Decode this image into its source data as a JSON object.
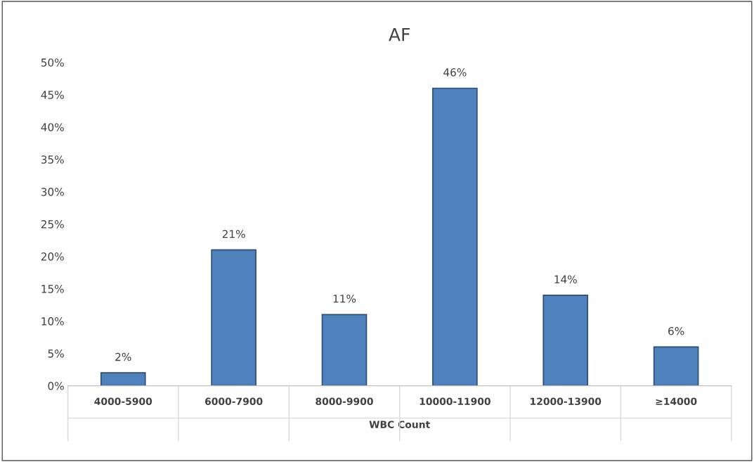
{
  "chart_data": {
    "type": "bar",
    "title": "AF",
    "xlabel": "WBC Count",
    "categories": [
      "4000-5900",
      "6000-7900",
      "8000-9900",
      "10000-11900",
      "12000-13900",
      "≥14000"
    ],
    "values": [
      2,
      21,
      11,
      46,
      14,
      6
    ],
    "value_labels": [
      "2%",
      "21%",
      "11%",
      "46%",
      "14%",
      "6%"
    ],
    "color": "#4f81bd",
    "ylim": [
      0,
      50
    ],
    "yticks": [
      {
        "value": 0,
        "label": "0%"
      },
      {
        "value": 5,
        "label": "5%"
      },
      {
        "value": 10,
        "label": "10%"
      },
      {
        "value": 15,
        "label": "15%"
      },
      {
        "value": 20,
        "label": "20%"
      },
      {
        "value": 25,
        "label": "25%"
      },
      {
        "value": 30,
        "label": "30%"
      },
      {
        "value": 35,
        "label": "35%"
      },
      {
        "value": 40,
        "label": "40%"
      },
      {
        "value": 45,
        "label": "45%"
      },
      {
        "value": 50,
        "label": "50%"
      }
    ],
    "grid": false,
    "legend": false
  }
}
